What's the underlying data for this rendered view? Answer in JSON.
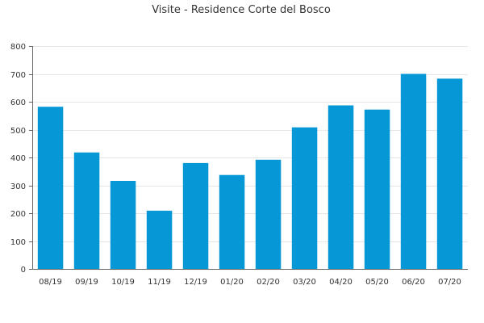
{
  "chart_data": {
    "type": "bar",
    "title": "Visite - Residence Corte del Bosco",
    "xlabel": "",
    "ylabel": "",
    "categories": [
      "08/19",
      "09/19",
      "10/19",
      "11/19",
      "12/19",
      "01/20",
      "02/20",
      "03/20",
      "04/20",
      "05/20",
      "06/20",
      "07/20"
    ],
    "values": [
      582,
      418,
      316,
      209,
      380,
      337,
      392,
      508,
      587,
      572,
      700,
      683
    ],
    "ylim": [
      0,
      800
    ],
    "yticks": [
      0,
      100,
      200,
      300,
      400,
      500,
      600,
      700,
      800
    ],
    "grid": true,
    "legend": "none",
    "bar_color": "#0597d6"
  }
}
